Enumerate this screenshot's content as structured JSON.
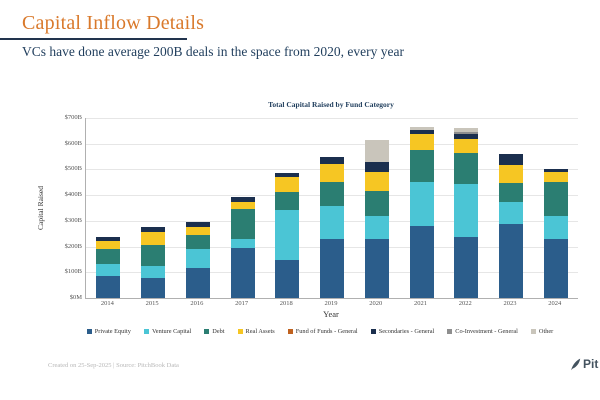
{
  "header": {
    "title": "Capital Inflow Details",
    "subtitle": "VCs have done average 200B deals in the space from 2020, every year"
  },
  "footer": {
    "created": "Created on 25-Sep-2025 | Source: PitchBook Data",
    "logo_text": "Pit"
  },
  "chart_data": {
    "type": "bar",
    "stacked": true,
    "title": "Total Capital Raised by Fund Category",
    "xlabel": "Year",
    "ylabel": "Capital Raised",
    "unit": "USD billions",
    "grid": true,
    "legend_position": "bottom",
    "ylim": [
      0,
      700
    ],
    "y_ticks_bottom_to_top": [
      "$0M",
      "$100B",
      "$200B",
      "$300B",
      "$400B",
      "$500B",
      "$600B",
      "$700B"
    ],
    "categories": [
      "2014",
      "2015",
      "2016",
      "2017",
      "2018",
      "2019",
      "2020",
      "2021",
      "2022",
      "2023",
      "2024"
    ],
    "series": [
      {
        "name": "Private Equity",
        "color": "#2b5d8b",
        "values": [
          85,
          78,
          117,
          196,
          147,
          228,
          228,
          280,
          239,
          287,
          228
        ]
      },
      {
        "name": "Venture Capital",
        "color": "#4bc5d5",
        "values": [
          49,
          46,
          72,
          35,
          196,
          130,
          91,
          170,
          205,
          85,
          91
        ]
      },
      {
        "name": "Debt",
        "color": "#2b7e72",
        "values": [
          55,
          82,
          55,
          117,
          68,
          95,
          98,
          124,
          120,
          76,
          131
        ]
      },
      {
        "name": "Real Assets",
        "color": "#f6c623",
        "values": [
          33,
          52,
          33,
          25,
          59,
          70,
          72,
          62,
          56,
          68,
          39
        ]
      },
      {
        "name": "Fund of Funds - General",
        "color": "#c0621f",
        "values": [
          0,
          0,
          0,
          0,
          0,
          0,
          0,
          0,
          0,
          0,
          0
        ]
      },
      {
        "name": "Secondaries - General",
        "color": "#1b2f4e",
        "values": [
          17,
          18,
          20,
          20,
          16,
          25,
          39,
          16,
          17,
          46,
          13
        ]
      },
      {
        "name": "Co-Investment - General",
        "color": "#8e8e8e",
        "values": [
          0,
          0,
          0,
          0,
          0,
          0,
          0,
          0,
          8,
          0,
          0
        ]
      },
      {
        "name": "Other",
        "color": "#c9c5bb",
        "values": [
          0,
          0,
          0,
          0,
          0,
          0,
          85,
          13,
          16,
          0,
          0
        ]
      }
    ],
    "totals": [
      239,
      276,
      297,
      393,
      486,
      548,
      613,
      665,
      661,
      562,
      502
    ]
  }
}
